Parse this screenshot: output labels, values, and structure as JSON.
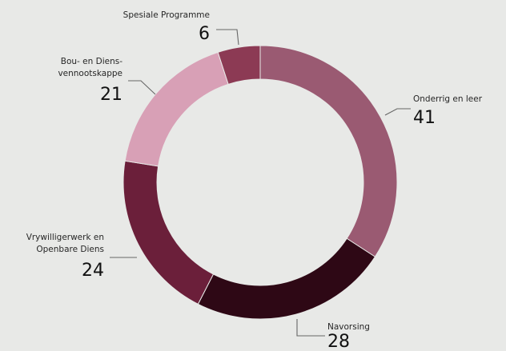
{
  "chart_data": {
    "type": "pie",
    "donut": true,
    "title": "",
    "categories": [
      "Onderrig en leer",
      "Navorsing",
      "Vrywilligerwerk en Openbare Diens",
      "Bou- en Diens-vennootskappe",
      "Spesiale Programme"
    ],
    "values": [
      41,
      28,
      24,
      21,
      6
    ],
    "colors": [
      "#9a5a72",
      "#2e0815",
      "#6b1f3a",
      "#d8a0b6",
      "#8c3a54"
    ],
    "labels": [
      {
        "lines": [
          "Onderrig en leer"
        ],
        "value": "41"
      },
      {
        "lines": [
          "Navorsing"
        ],
        "value": "28"
      },
      {
        "lines": [
          "Vrywilligerwerk en",
          "Openbare Diens"
        ],
        "value": "24"
      },
      {
        "lines": [
          "Bou- en Diens-",
          "vennootskappe"
        ],
        "value": "21"
      },
      {
        "lines": [
          "Spesiale Programme"
        ],
        "value": "6"
      }
    ],
    "legend": "none",
    "grid": false
  }
}
